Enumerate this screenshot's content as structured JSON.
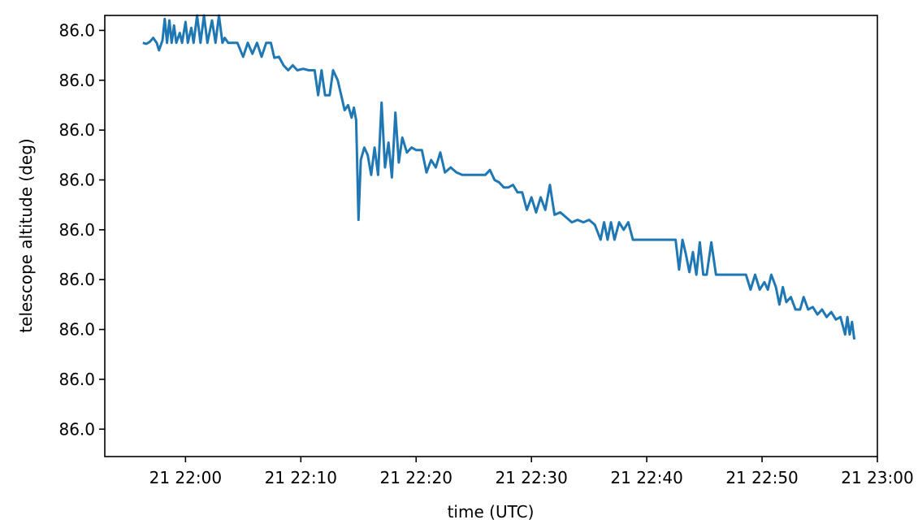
{
  "chart_data": {
    "type": "line",
    "title": "",
    "xlabel": "time (UTC)",
    "ylabel": "telescope altitude (deg)",
    "x_unit": "minutes after 21 21:50 UTC",
    "xlim": [
      "21 21:53",
      "21 23:00"
    ],
    "x_ticks": [
      "21 22:00",
      "21 22:10",
      "21 22:20",
      "21 22:30",
      "21 22:40",
      "21 22:50",
      "21 23:00"
    ],
    "ylim_relative": [
      -8.3,
      0.55
    ],
    "y_ticks": [
      "86.0",
      "86.0",
      "86.0",
      "86.0",
      "86.0",
      "86.0",
      "86.0",
      "86.0",
      "86.0"
    ],
    "grid": false,
    "legend": "none",
    "series": [
      {
        "color": "#1f77b4",
        "note_values": "y values are altitude relative to an unresolved base near 86.0 deg; axis tick labels all read 86.0",
        "points": [
          [
            "21 21:56.3",
            0.0
          ],
          [
            "21 21:56.6",
            -0.02
          ],
          [
            "21 21:56.9",
            0.02
          ],
          [
            "21 21:57.2",
            0.1
          ],
          [
            "21 21:57.5",
            0.0
          ],
          [
            "21 21:57.7",
            -0.15
          ],
          [
            "21 21:58.0",
            0.05
          ],
          [
            "21 21:58.2",
            0.48
          ],
          [
            "21 21:58.4",
            0.0
          ],
          [
            "21 21:58.6",
            0.45
          ],
          [
            "21 21:58.8",
            0.0
          ],
          [
            "21 21:59.0",
            0.35
          ],
          [
            "21 21:59.2",
            0.0
          ],
          [
            "21 21:59.5",
            0.2
          ],
          [
            "21 21:59.7",
            0.0
          ],
          [
            "21 22:00.0",
            0.42
          ],
          [
            "21 22:00.2",
            0.0
          ],
          [
            "21 22:00.5",
            0.3
          ],
          [
            "21 22:00.7",
            0.0
          ],
          [
            "21 22:01.0",
            0.55
          ],
          [
            "21 22:01.3",
            0.0
          ],
          [
            "21 22:01.6",
            0.55
          ],
          [
            "21 22:01.9",
            0.0
          ],
          [
            "21 22:02.3",
            0.45
          ],
          [
            "21 22:02.6",
            0.0
          ],
          [
            "21 22:02.9",
            0.55
          ],
          [
            "21 22:03.2",
            0.0
          ],
          [
            "21 22:03.4",
            0.1
          ],
          [
            "21 22:03.7",
            0.0
          ],
          [
            "21 22:04.5",
            0.0
          ],
          [
            "21 22:05.0",
            -0.28
          ],
          [
            "21 22:05.4",
            0.0
          ],
          [
            "21 22:05.8",
            -0.22
          ],
          [
            "21 22:06.2",
            0.0
          ],
          [
            "21 22:06.6",
            -0.28
          ],
          [
            "21 22:07.0",
            0.0
          ],
          [
            "21 22:07.4",
            0.0
          ],
          [
            "21 22:07.7",
            -0.3
          ],
          [
            "21 22:08.1",
            -0.28
          ],
          [
            "21 22:08.5",
            -0.45
          ],
          [
            "21 22:08.9",
            -0.55
          ],
          [
            "21 22:09.3",
            -0.45
          ],
          [
            "21 22:09.7",
            -0.55
          ],
          [
            "21 22:10.2",
            -0.52
          ],
          [
            "21 22:10.7",
            -0.55
          ],
          [
            "21 22:11.2",
            -0.55
          ],
          [
            "21 22:11.5",
            -1.05
          ],
          [
            "21 22:11.8",
            -0.55
          ],
          [
            "21 22:12.1",
            -1.05
          ],
          [
            "21 22:12.5",
            -1.05
          ],
          [
            "21 22:12.8",
            -0.55
          ],
          [
            "21 22:13.2",
            -0.75
          ],
          [
            "21 22:13.5",
            -1.05
          ],
          [
            "21 22:13.8",
            -1.35
          ],
          [
            "21 22:14.1",
            -1.25
          ],
          [
            "21 22:14.4",
            -1.5
          ],
          [
            "21 22:14.6",
            -1.3
          ],
          [
            "21 22:14.8",
            -1.55
          ],
          [
            "21 22:15.0",
            -3.55
          ],
          [
            "21 22:15.2",
            -2.35
          ],
          [
            "21 22:15.5",
            -2.1
          ],
          [
            "21 22:15.8",
            -2.25
          ],
          [
            "21 22:16.1",
            -2.65
          ],
          [
            "21 22:16.4",
            -2.1
          ],
          [
            "21 22:16.7",
            -2.65
          ],
          [
            "21 22:17.0",
            -1.2
          ],
          [
            "21 22:17.3",
            -2.5
          ],
          [
            "21 22:17.6",
            -2.0
          ],
          [
            "21 22:17.9",
            -2.7
          ],
          [
            "21 22:18.2",
            -1.4
          ],
          [
            "21 22:18.5",
            -2.4
          ],
          [
            "21 22:18.8",
            -1.9
          ],
          [
            "21 22:19.2",
            -2.2
          ],
          [
            "21 22:19.6",
            -2.1
          ],
          [
            "21 22:20.0",
            -2.15
          ],
          [
            "21 22:20.5",
            -2.15
          ],
          [
            "21 22:20.9",
            -2.6
          ],
          [
            "21 22:21.3",
            -2.35
          ],
          [
            "21 22:21.7",
            -2.5
          ],
          [
            "21 22:22.1",
            -2.2
          ],
          [
            "21 22:22.5",
            -2.6
          ],
          [
            "21 22:23.0",
            -2.5
          ],
          [
            "21 22:23.5",
            -2.6
          ],
          [
            "21 22:24.0",
            -2.65
          ],
          [
            "21 22:24.5",
            -2.65
          ],
          [
            "21 22:25.0",
            -2.65
          ],
          [
            "21 22:25.5",
            -2.65
          ],
          [
            "21 22:26.0",
            -2.65
          ],
          [
            "21 22:26.4",
            -2.55
          ],
          [
            "21 22:26.8",
            -2.75
          ],
          [
            "21 22:27.2",
            -2.8
          ],
          [
            "21 22:27.6",
            -2.9
          ],
          [
            "21 22:28.0",
            -2.9
          ],
          [
            "21 22:28.4",
            -2.85
          ],
          [
            "21 22:28.8",
            -3.0
          ],
          [
            "21 22:29.2",
            -3.0
          ],
          [
            "21 22:29.6",
            -3.35
          ],
          [
            "21 22:30.0",
            -3.1
          ],
          [
            "21 22:30.4",
            -3.4
          ],
          [
            "21 22:30.8",
            -3.1
          ],
          [
            "21 22:31.2",
            -3.35
          ],
          [
            "21 22:31.6",
            -2.85
          ],
          [
            "21 22:32.0",
            -3.45
          ],
          [
            "21 22:32.5",
            -3.4
          ],
          [
            "21 22:33.0",
            -3.5
          ],
          [
            "21 22:33.5",
            -3.6
          ],
          [
            "21 22:34.0",
            -3.55
          ],
          [
            "21 22:34.5",
            -3.6
          ],
          [
            "21 22:35.0",
            -3.55
          ],
          [
            "21 22:35.5",
            -3.65
          ],
          [
            "21 22:36.0",
            -3.95
          ],
          [
            "21 22:36.3",
            -3.6
          ],
          [
            "21 22:36.6",
            -3.95
          ],
          [
            "21 22:36.9",
            -3.6
          ],
          [
            "21 22:37.2",
            -3.95
          ],
          [
            "21 22:37.6",
            -3.6
          ],
          [
            "21 22:38.0",
            -3.75
          ],
          [
            "21 22:38.4",
            -3.6
          ],
          [
            "21 22:38.8",
            -3.95
          ],
          [
            "21 22:40.0",
            -3.95
          ],
          [
            "21 22:41.0",
            -3.95
          ],
          [
            "21 22:42.0",
            -3.95
          ],
          [
            "21 22:42.5",
            -3.95
          ],
          [
            "21 22:42.8",
            -4.55
          ],
          [
            "21 22:43.1",
            -3.95
          ],
          [
            "21 22:43.4",
            -4.25
          ],
          [
            "21 22:43.7",
            -4.6
          ],
          [
            "21 22:44.0",
            -4.2
          ],
          [
            "21 22:44.3",
            -4.65
          ],
          [
            "21 22:44.6",
            -4.0
          ],
          [
            "21 22:44.9",
            -4.65
          ],
          [
            "21 22:45.2",
            -4.65
          ],
          [
            "21 22:45.6",
            -4.0
          ],
          [
            "21 22:46.0",
            -4.65
          ],
          [
            "21 22:47.0",
            -4.65
          ],
          [
            "21 22:48.0",
            -4.65
          ],
          [
            "21 22:48.6",
            -4.65
          ],
          [
            "21 22:49.0",
            -4.95
          ],
          [
            "21 22:49.4",
            -4.65
          ],
          [
            "21 22:49.8",
            -4.95
          ],
          [
            "21 22:50.2",
            -4.8
          ],
          [
            "21 22:50.5",
            -4.95
          ],
          [
            "21 22:50.8",
            -4.65
          ],
          [
            "21 22:51.2",
            -4.9
          ],
          [
            "21 22:51.5",
            -5.25
          ],
          [
            "21 22:51.8",
            -4.9
          ],
          [
            "21 22:52.1",
            -5.2
          ],
          [
            "21 22:52.5",
            -5.1
          ],
          [
            "21 22:52.9",
            -5.35
          ],
          [
            "21 22:53.3",
            -5.35
          ],
          [
            "21 22:53.6",
            -5.1
          ],
          [
            "21 22:54.0",
            -5.35
          ],
          [
            "21 22:54.4",
            -5.3
          ],
          [
            "21 22:54.8",
            -5.45
          ],
          [
            "21 22:55.2",
            -5.35
          ],
          [
            "21 22:55.6",
            -5.5
          ],
          [
            "21 22:56.0",
            -5.4
          ],
          [
            "21 22:56.4",
            -5.55
          ],
          [
            "21 22:56.8",
            -5.5
          ],
          [
            "21 22:57.2",
            -5.85
          ],
          [
            "21 22:57.4",
            -5.5
          ],
          [
            "21 22:57.6",
            -5.85
          ],
          [
            "21 22:57.8",
            -5.6
          ],
          [
            "21 22:58.0",
            -5.95
          ]
        ]
      }
    ]
  }
}
